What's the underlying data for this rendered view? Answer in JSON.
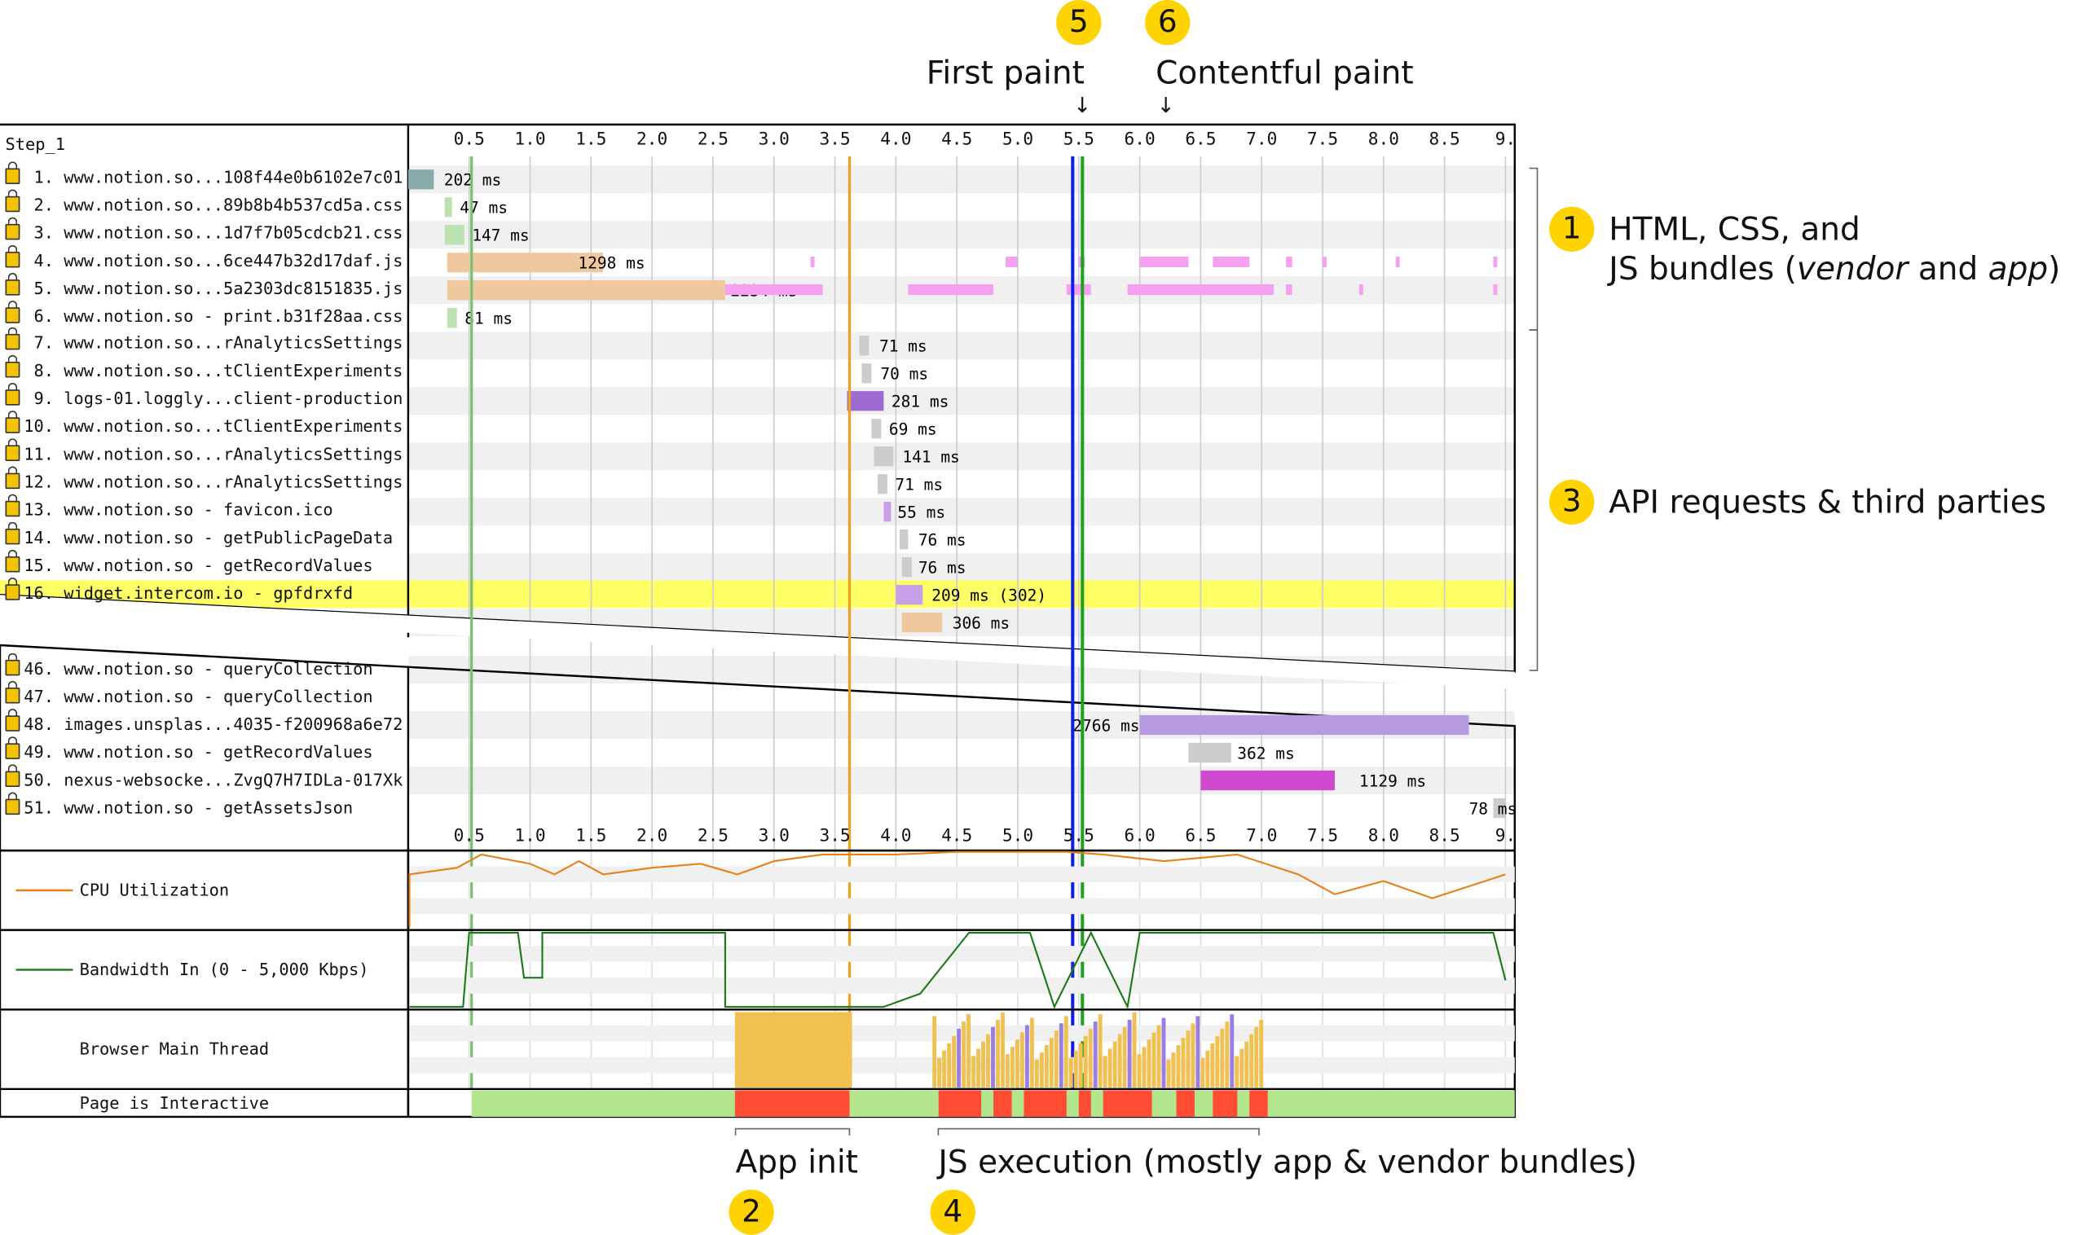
{
  "step_label": "Step_1",
  "ticks": [
    "0.5",
    "1.0",
    "1.5",
    "2.0",
    "2.5",
    "3.0",
    "3.5",
    "4.0",
    "4.5",
    "5.0",
    "5.5",
    "6.0",
    "6.5",
    "7.0",
    "7.5",
    "8.0",
    "8.5",
    "9."
  ],
  "top_rows": [
    {
      "label": "1. www.notion.so...108f44e0b6102e7c01",
      "ms": "202 ms"
    },
    {
      "label": "2. www.notion.so...89b8b4b537cd5a.css",
      "ms": "47 ms"
    },
    {
      "label": "3. www.notion.so...1d7f7b05cdcb21.css",
      "ms": "147 ms"
    },
    {
      "label": "4. www.notion.so...6ce447b32d17daf.js",
      "ms": "1298 ms"
    },
    {
      "label": "5. www.notion.so...5a2303dc8151835.js",
      "ms": "2234 ms"
    },
    {
      "label": "6. www.notion.so - print.b31f28aa.css",
      "ms": "81 ms"
    },
    {
      "label": "7. www.notion.so...rAnalyticsSettings",
      "ms": "71 ms"
    },
    {
      "label": "8. www.notion.so...tClientExperiments",
      "ms": "70 ms"
    },
    {
      "label": "9. logs-01.loggly...client-production",
      "ms": "281 ms"
    },
    {
      "label": "10. www.notion.so...tClientExperiments",
      "ms": "69 ms"
    },
    {
      "label": "11. www.notion.so...rAnalyticsSettings",
      "ms": "141 ms"
    },
    {
      "label": "12. www.notion.so...rAnalyticsSettings",
      "ms": "71 ms"
    },
    {
      "label": "13. www.notion.so - favicon.ico",
      "ms": "55 ms"
    },
    {
      "label": "14. www.notion.so - getPublicPageData",
      "ms": "76 ms"
    },
    {
      "label": "15. www.notion.so - getRecordValues",
      "ms": "76 ms"
    },
    {
      "label": "16. widget.intercom.io - gpfdrxfd",
      "ms": "209 ms (302)"
    },
    {
      "label": "",
      "ms": "306 ms"
    }
  ],
  "bottom_rows": [
    {
      "label": "46. www.notion.so - queryCollection",
      "ms": ""
    },
    {
      "label": "47. www.notion.so - queryCollection",
      "ms": ""
    },
    {
      "label": "48. images.unsplas...4035-f200968a6e72",
      "ms": "2766 ms"
    },
    {
      "label": "49. www.notion.so - getRecordValues",
      "ms": "362 ms"
    },
    {
      "label": "50. nexus-websocke...ZvgQ7H7IDLa-017Xk",
      "ms": "1129 ms"
    },
    {
      "label": "51. www.notion.so - getAssetsJson",
      "ms": "78 ms"
    }
  ],
  "metrics": {
    "cpu": "CPU Utilization",
    "bandwidth": "Bandwidth In (0 - 5,000 Kbps)",
    "main_thread": "Browser Main Thread",
    "interactive": "Page is Interactive"
  },
  "annotations": {
    "first_paint": "First paint",
    "contentful_paint": "Contentful paint",
    "badge1": "1",
    "badge2": "2",
    "badge3": "3",
    "badge4": "4",
    "badge5": "5",
    "badge6": "6",
    "bundles_line1": "HTML, CSS, and",
    "bundles_line2_a": "JS bundles (",
    "bundles_vendor": "vendor",
    "bundles_and": " and ",
    "bundles_app": "app",
    "bundles_close": ")",
    "api": "API requests & third parties",
    "app_init": "App init",
    "js_exec": "JS execution (mostly app & vendor bundles)",
    "arrow": "↓"
  },
  "colors": {
    "first_paint_line": "#1020e0",
    "contentful_line": "#20a020",
    "orange_line": "#f0a020",
    "highlight_row": "#ffff66",
    "badge": "#ffd300",
    "interactive_green": "#b3e68c",
    "interactive_red": "#ff4c33",
    "thread_yellow": "#f0c050",
    "thread_purple": "#9b7fe0"
  }
}
